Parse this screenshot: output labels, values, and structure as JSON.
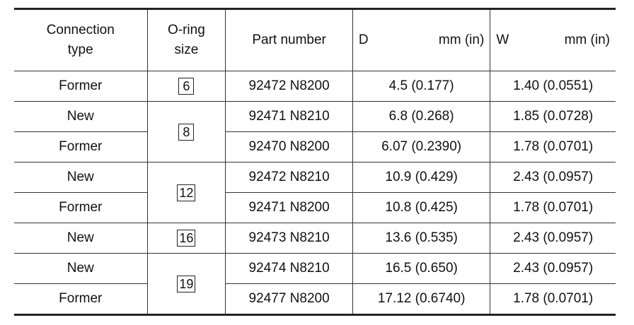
{
  "table": {
    "header": [
      {
        "label": "Connection type"
      },
      {
        "label": "O-ring size"
      },
      {
        "label": "Part number"
      },
      {
        "label": "D",
        "unit": "mm (in)"
      },
      {
        "label": "W",
        "unit": "mm (in)"
      }
    ],
    "groups": [
      {
        "size": "6",
        "rows": [
          [
            "Former",
            "92472 N8200",
            "4.5 (0.177)",
            "1.40 (0.0551)"
          ]
        ]
      },
      {
        "size": "8",
        "rows": [
          [
            "New",
            "92471 N8210",
            "6.8 (0.268)",
            "1.85 (0.0728)"
          ],
          [
            "Former",
            "92470 N8200",
            "6.07 (0.2390)",
            "1.78 (0.0701)"
          ]
        ]
      },
      {
        "size": "12",
        "rows": [
          [
            "New",
            "92472 N8210",
            "10.9 (0.429)",
            "2.43 (0.0957)"
          ],
          [
            "Former",
            "92471 N8200",
            "10.8 (0.425)",
            "1.78 (0.0701)"
          ]
        ]
      },
      {
        "size": "16",
        "rows": [
          [
            "New",
            "92473 N8210",
            "13.6 (0.535)",
            "2.43 (0.0957)"
          ]
        ]
      },
      {
        "size": "19",
        "rows": [
          [
            "New",
            "92474 N8210",
            "16.5 (0.650)",
            "2.43 (0.0957)"
          ],
          [
            "Former",
            "92477 N8200",
            "17.12 (0.6740)",
            "1.78 (0.0701)"
          ]
        ]
      }
    ]
  }
}
